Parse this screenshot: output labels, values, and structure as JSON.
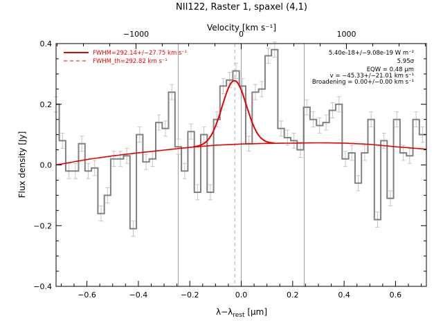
{
  "chart_data": {
    "type": "line",
    "title": "NII122, Raster 1, spaxel (4,1)",
    "xlabel": "λ−λrest [μm]",
    "xlabel_main": "λ−λ",
    "xlabel_sub": "rest",
    "xlabel_unit": " [μm]",
    "ylabel": "Flux density [Jy]",
    "top_axis_label": "Velocity [km s⁻¹]",
    "xlim": [
      -0.72,
      0.72
    ],
    "ylim": [
      -0.4,
      0.4
    ],
    "top_axis_range_kms": [
      -1760,
      1760
    ],
    "x_ticks": [
      "−0.6",
      "−0.4",
      "−0.2",
      "0.0",
      "0.2",
      "0.4",
      "0.6"
    ],
    "x_tick_values": [
      -0.6,
      -0.4,
      -0.2,
      0.0,
      0.2,
      0.4,
      0.6
    ],
    "y_ticks": [
      "−0.4",
      "−0.2",
      "0.0",
      "0.2",
      "0.4"
    ],
    "y_tick_values": [
      -0.4,
      -0.2,
      0.0,
      0.2,
      0.4
    ],
    "top_ticks": [
      "−1000",
      "0",
      "1000"
    ],
    "top_tick_values": [
      -1000,
      0,
      1000
    ],
    "vertical_lines": [
      -0.245,
      0.0,
      0.245
    ],
    "dashed_line": -0.025,
    "legend": {
      "position": "top-left",
      "entries": [
        {
          "label": "FWHM=292.14+/−27.75 km s⁻¹",
          "style": "solid"
        },
        {
          "label": "FWHM_th=292.82 km s⁻¹",
          "style": "dashed"
        }
      ]
    },
    "annotations": [
      "5.40e-18+/−9.08e-19 W m⁻²",
      "5.95σ",
      "EQW = 0.48 μm",
      "v = −45.33+/−21.01 km s⁻¹",
      "Broadening = 0.00+/−0.00 km s⁻¹"
    ],
    "series": [
      {
        "name": "Spectrum",
        "style": "histogram",
        "color": "#808080",
        "x": [
          -0.72,
          -0.695,
          -0.67,
          -0.645,
          -0.62,
          -0.595,
          -0.57,
          -0.545,
          -0.52,
          -0.495,
          -0.47,
          -0.445,
          -0.42,
          -0.395,
          -0.37,
          -0.345,
          -0.32,
          -0.295,
          -0.27,
          -0.245,
          -0.22,
          -0.195,
          -0.17,
          -0.145,
          -0.12,
          -0.095,
          -0.07,
          -0.045,
          -0.02,
          0.005,
          0.03,
          0.055,
          0.08,
          0.105,
          0.13,
          0.155,
          0.18,
          0.205,
          0.23,
          0.255,
          0.28,
          0.305,
          0.33,
          0.355,
          0.38,
          0.405,
          0.43,
          0.455,
          0.48,
          0.505,
          0.53,
          0.555,
          0.58,
          0.605,
          0.63,
          0.655,
          0.68,
          0.705
        ],
        "y": [
          0.2,
          0.08,
          -0.02,
          -0.02,
          0.07,
          -0.02,
          -0.01,
          -0.16,
          -0.1,
          0.02,
          0.02,
          0.03,
          -0.21,
          0.1,
          0.01,
          0.02,
          0.14,
          0.12,
          0.24,
          0.06,
          -0.02,
          0.11,
          -0.09,
          0.1,
          -0.09,
          0.15,
          0.26,
          0.28,
          0.31,
          0.26,
          0.07,
          0.24,
          0.25,
          0.36,
          0.38,
          0.12,
          0.09,
          0.08,
          0.05,
          0.19,
          0.15,
          0.13,
          0.14,
          0.18,
          0.2,
          0.02,
          0.04,
          -0.06,
          0.04,
          0.15,
          -0.18,
          0.08,
          -0.11,
          0.15,
          0.04,
          0.03,
          0.15,
          0.1
        ],
        "error": 0.025
      },
      {
        "name": "Continuum",
        "style": "line",
        "color": "#e60000",
        "x": [
          -0.72,
          -0.6,
          -0.5,
          -0.4,
          -0.3,
          -0.2,
          -0.1,
          0.0,
          0.1,
          0.2,
          0.3,
          0.4,
          0.5,
          0.6,
          0.72
        ],
        "y": [
          0.0,
          0.018,
          0.03,
          0.04,
          0.049,
          0.058,
          0.065,
          0.069,
          0.071,
          0.072,
          0.073,
          0.072,
          0.068,
          0.06,
          0.052
        ]
      },
      {
        "name": "Gaussian fit",
        "style": "line",
        "color": "#e60000",
        "center": -0.027,
        "amplitude": 0.21,
        "sigma": 0.047
      }
    ]
  }
}
